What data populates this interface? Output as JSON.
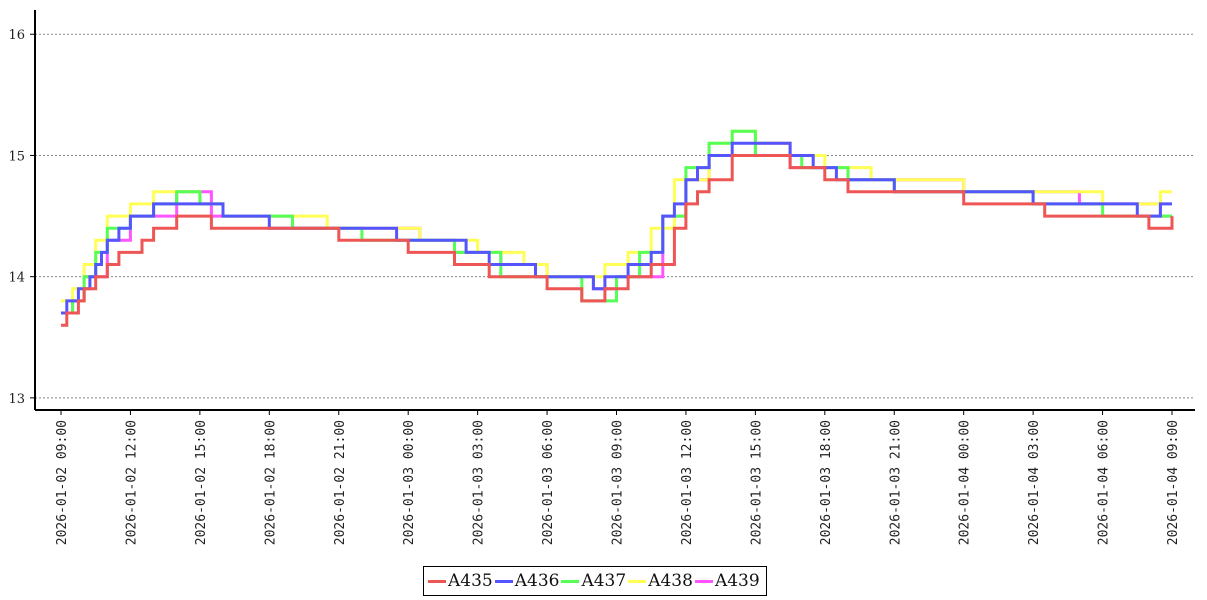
{
  "chart_data": {
    "type": "line",
    "step": true,
    "grid": {
      "y": true,
      "style": "dotted"
    },
    "legend_placement": "bottom-center",
    "xlim": [
      "2026-01-02 09:00",
      "2026-01-04 09:00"
    ],
    "ylim": [
      12.9,
      16.2
    ],
    "yticks": [
      13,
      14,
      15,
      16
    ],
    "xticks": [
      "2026-01-02 09:00",
      "2026-01-02 12:00",
      "2026-01-02 15:00",
      "2026-01-02 18:00",
      "2026-01-02 21:00",
      "2026-01-03 00:00",
      "2026-01-03 03:00",
      "2026-01-03 06:00",
      "2026-01-03 09:00",
      "2026-01-03 12:00",
      "2026-01-03 15:00",
      "2026-01-03 18:00",
      "2026-01-03 21:00",
      "2026-01-04 00:00",
      "2026-01-04 03:00",
      "2026-01-04 06:00",
      "2026-01-04 09:00"
    ],
    "series": [
      {
        "name": "A439",
        "color": "#ff55ff",
        "points": [
          [
            "2026-01-02 09:00",
            13.7
          ],
          [
            "2026-01-02 09:30",
            13.8
          ],
          [
            "2026-01-02 10:00",
            14.0
          ],
          [
            "2026-01-02 11:00",
            14.3
          ],
          [
            "2026-01-02 12:00",
            14.5
          ],
          [
            "2026-01-02 14:00",
            14.7
          ],
          [
            "2026-01-02 15:30",
            14.5
          ],
          [
            "2026-01-02 19:00",
            14.4
          ],
          [
            "2026-01-02 22:00",
            14.4
          ],
          [
            "2026-01-03 00:30",
            14.3
          ],
          [
            "2026-01-03 02:00",
            14.2
          ],
          [
            "2026-01-03 04:00",
            14.1
          ],
          [
            "2026-01-03 06:00",
            14.0
          ],
          [
            "2026-01-03 08:00",
            13.9
          ],
          [
            "2026-01-03 09:00",
            14.0
          ],
          [
            "2026-01-03 11:00",
            14.5
          ],
          [
            "2026-01-03 12:00",
            14.8
          ],
          [
            "2026-01-03 13:00",
            15.0
          ],
          [
            "2026-01-03 15:00",
            15.1
          ],
          [
            "2026-01-03 16:30",
            14.9
          ],
          [
            "2026-01-03 19:00",
            14.8
          ],
          [
            "2026-01-03 21:30",
            14.8
          ],
          [
            "2026-01-04 00:00",
            14.7
          ],
          [
            "2026-01-04 03:00",
            14.7
          ],
          [
            "2026-01-04 05:00",
            14.6
          ],
          [
            "2026-01-04 07:00",
            14.6
          ],
          [
            "2026-01-04 08:30",
            14.5
          ],
          [
            "2026-01-04 09:00",
            14.5
          ]
        ]
      },
      {
        "name": "A438",
        "color": "#ffff55",
        "points": [
          [
            "2026-01-02 09:00",
            13.8
          ],
          [
            "2026-01-02 09:30",
            13.9
          ],
          [
            "2026-01-02 10:00",
            14.1
          ],
          [
            "2026-01-02 10:30",
            14.3
          ],
          [
            "2026-01-02 11:00",
            14.5
          ],
          [
            "2026-01-02 12:00",
            14.6
          ],
          [
            "2026-01-02 13:00",
            14.7
          ],
          [
            "2026-01-02 15:00",
            14.6
          ],
          [
            "2026-01-02 16:00",
            14.5
          ],
          [
            "2026-01-02 20:30",
            14.4
          ],
          [
            "2026-01-02 23:00",
            14.4
          ],
          [
            "2026-01-03 00:30",
            14.3
          ],
          [
            "2026-01-03 03:00",
            14.2
          ],
          [
            "2026-01-03 05:00",
            14.1
          ],
          [
            "2026-01-03 06:00",
            14.0
          ],
          [
            "2026-01-03 08:30",
            14.1
          ],
          [
            "2026-01-03 09:30",
            14.2
          ],
          [
            "2026-01-03 10:30",
            14.4
          ],
          [
            "2026-01-03 11:30",
            14.8
          ],
          [
            "2026-01-03 13:00",
            15.1
          ],
          [
            "2026-01-03 14:00",
            15.2
          ],
          [
            "2026-01-03 15:00",
            15.1
          ],
          [
            "2026-01-03 16:30",
            15.0
          ],
          [
            "2026-01-03 18:00",
            14.9
          ],
          [
            "2026-01-03 19:00",
            14.9
          ],
          [
            "2026-01-03 20:00",
            14.8
          ],
          [
            "2026-01-03 22:00",
            14.8
          ],
          [
            "2026-01-04 00:00",
            14.7
          ],
          [
            "2026-01-04 04:30",
            14.7
          ],
          [
            "2026-01-04 06:00",
            14.6
          ],
          [
            "2026-01-04 08:30",
            14.7
          ],
          [
            "2026-01-04 09:00",
            14.7
          ]
        ]
      },
      {
        "name": "A437",
        "color": "#55ff55",
        "points": [
          [
            "2026-01-02 09:00",
            13.7
          ],
          [
            "2026-01-02 09:30",
            13.8
          ],
          [
            "2026-01-02 10:00",
            14.0
          ],
          [
            "2026-01-02 10:30",
            14.2
          ],
          [
            "2026-01-02 11:00",
            14.4
          ],
          [
            "2026-01-02 12:00",
            14.5
          ],
          [
            "2026-01-02 13:00",
            14.6
          ],
          [
            "2026-01-02 14:00",
            14.7
          ],
          [
            "2026-01-02 15:00",
            14.6
          ],
          [
            "2026-01-02 16:00",
            14.5
          ],
          [
            "2026-01-02 19:00",
            14.4
          ],
          [
            "2026-01-02 22:00",
            14.3
          ],
          [
            "2026-01-03 00:30",
            14.3
          ],
          [
            "2026-01-03 02:00",
            14.2
          ],
          [
            "2026-01-03 04:00",
            14.0
          ],
          [
            "2026-01-03 06:00",
            14.0
          ],
          [
            "2026-01-03 07:30",
            13.8
          ],
          [
            "2026-01-03 09:00",
            14.0
          ],
          [
            "2026-01-03 10:00",
            14.2
          ],
          [
            "2026-01-03 11:00",
            14.5
          ],
          [
            "2026-01-03 12:00",
            14.9
          ],
          [
            "2026-01-03 13:00",
            15.1
          ],
          [
            "2026-01-03 14:00",
            15.2
          ],
          [
            "2026-01-03 15:00",
            15.0
          ],
          [
            "2026-01-03 17:00",
            14.9
          ],
          [
            "2026-01-03 19:00",
            14.8
          ],
          [
            "2026-01-03 21:00",
            14.7
          ],
          [
            "2026-01-04 00:00",
            14.7
          ],
          [
            "2026-01-04 03:00",
            14.6
          ],
          [
            "2026-01-04 06:00",
            14.5
          ],
          [
            "2026-01-04 08:00",
            14.5
          ],
          [
            "2026-01-04 09:00",
            14.5
          ]
        ]
      },
      {
        "name": "A436",
        "color": "#5555ff",
        "points": [
          [
            "2026-01-02 09:00",
            13.7
          ],
          [
            "2026-01-02 09:15",
            13.8
          ],
          [
            "2026-01-02 09:45",
            13.9
          ],
          [
            "2026-01-02 10:15",
            14.0
          ],
          [
            "2026-01-02 10:30",
            14.1
          ],
          [
            "2026-01-02 10:45",
            14.2
          ],
          [
            "2026-01-02 11:00",
            14.3
          ],
          [
            "2026-01-02 11:30",
            14.4
          ],
          [
            "2026-01-02 12:00",
            14.5
          ],
          [
            "2026-01-02 13:00",
            14.6
          ],
          [
            "2026-01-02 16:00",
            14.5
          ],
          [
            "2026-01-02 18:00",
            14.4
          ],
          [
            "2026-01-02 23:30",
            14.3
          ],
          [
            "2026-01-03 01:00",
            14.3
          ],
          [
            "2026-01-03 02:30",
            14.2
          ],
          [
            "2026-01-03 03:30",
            14.1
          ],
          [
            "2026-01-03 05:30",
            14.0
          ],
          [
            "2026-01-03 06:30",
            14.0
          ],
          [
            "2026-01-03 08:00",
            13.9
          ],
          [
            "2026-01-03 08:30",
            14.0
          ],
          [
            "2026-01-03 09:30",
            14.1
          ],
          [
            "2026-01-03 10:00",
            14.1
          ],
          [
            "2026-01-03 10:30",
            14.2
          ],
          [
            "2026-01-03 11:00",
            14.5
          ],
          [
            "2026-01-03 11:30",
            14.6
          ],
          [
            "2026-01-03 12:00",
            14.8
          ],
          [
            "2026-01-03 12:30",
            14.9
          ],
          [
            "2026-01-03 13:00",
            15.0
          ],
          [
            "2026-01-03 14:00",
            15.1
          ],
          [
            "2026-01-03 16:30",
            15.0
          ],
          [
            "2026-01-03 17:30",
            14.9
          ],
          [
            "2026-01-03 18:30",
            14.8
          ],
          [
            "2026-01-03 21:00",
            14.7
          ],
          [
            "2026-01-04 00:00",
            14.7
          ],
          [
            "2026-01-04 03:00",
            14.6
          ],
          [
            "2026-01-04 06:00",
            14.6
          ],
          [
            "2026-01-04 07:30",
            14.5
          ],
          [
            "2026-01-04 08:30",
            14.6
          ],
          [
            "2026-01-04 09:00",
            14.6
          ]
        ]
      },
      {
        "name": "A435",
        "color": "#ee5555",
        "points": [
          [
            "2026-01-02 09:00",
            13.6
          ],
          [
            "2026-01-02 09:15",
            13.7
          ],
          [
            "2026-01-02 09:45",
            13.8
          ],
          [
            "2026-01-02 10:00",
            13.9
          ],
          [
            "2026-01-02 10:30",
            14.0
          ],
          [
            "2026-01-02 11:00",
            14.1
          ],
          [
            "2026-01-02 11:30",
            14.2
          ],
          [
            "2026-01-02 12:30",
            14.3
          ],
          [
            "2026-01-02 13:00",
            14.4
          ],
          [
            "2026-01-02 14:00",
            14.5
          ],
          [
            "2026-01-02 15:30",
            14.4
          ],
          [
            "2026-01-02 20:30",
            14.4
          ],
          [
            "2026-01-02 21:00",
            14.3
          ],
          [
            "2026-01-03 00:00",
            14.2
          ],
          [
            "2026-01-03 02:00",
            14.1
          ],
          [
            "2026-01-03 03:30",
            14.0
          ],
          [
            "2026-01-03 06:00",
            13.9
          ],
          [
            "2026-01-03 07:30",
            13.8
          ],
          [
            "2026-01-03 08:30",
            13.9
          ],
          [
            "2026-01-03 09:30",
            14.0
          ],
          [
            "2026-01-03 10:30",
            14.1
          ],
          [
            "2026-01-03 11:30",
            14.4
          ],
          [
            "2026-01-03 12:00",
            14.6
          ],
          [
            "2026-01-03 12:30",
            14.7
          ],
          [
            "2026-01-03 13:00",
            14.8
          ],
          [
            "2026-01-03 14:00",
            15.0
          ],
          [
            "2026-01-03 16:30",
            14.9
          ],
          [
            "2026-01-03 18:00",
            14.8
          ],
          [
            "2026-01-03 19:00",
            14.7
          ],
          [
            "2026-01-03 22:00",
            14.7
          ],
          [
            "2026-01-04 00:00",
            14.6
          ],
          [
            "2026-01-04 03:30",
            14.5
          ],
          [
            "2026-01-04 07:00",
            14.5
          ],
          [
            "2026-01-04 08:00",
            14.4
          ],
          [
            "2026-01-04 09:00",
            14.5
          ]
        ]
      }
    ],
    "legend_order": [
      "A435",
      "A436",
      "A437",
      "A438",
      "A439"
    ]
  }
}
